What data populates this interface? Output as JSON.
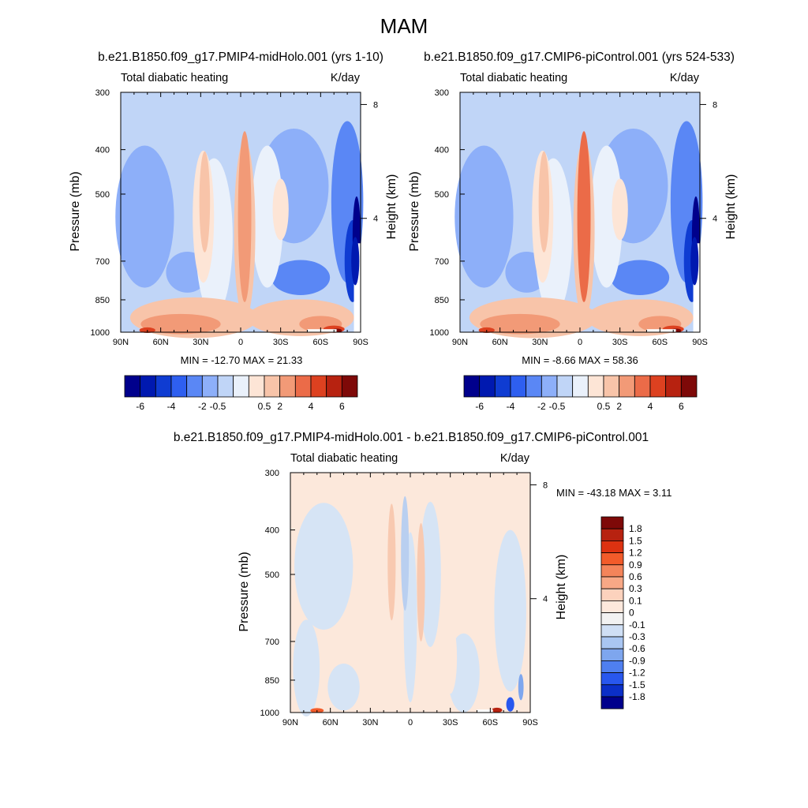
{
  "figure": {
    "title": "MAM",
    "panels": [
      {
        "id": "a",
        "case_title": "b.e21.B1850.f09_g17.PMIP4-midHolo.001 (yrs 1-10)",
        "left_label": "Total diabatic heating",
        "right_label": "K/day",
        "stats": "MIN = -12.70  MAX =  21.33"
      },
      {
        "id": "b",
        "case_title": "b.e21.B1850.f09_g17.CMIP6-piControl.001 (yrs 524-533)",
        "left_label": "Total diabatic heating",
        "right_label": "K/day",
        "stats": "MIN =  -8.66  MAX =  58.36"
      },
      {
        "id": "c",
        "case_title": "b.e21.B1850.f09_g17.PMIP4-midHolo.001 - b.e21.B1850.f09_g17.CMIP6-piControl.001",
        "left_label": "Total diabatic heating",
        "right_label": "K/day",
        "stats": "MIN = -43.18  MAX =   3.11"
      }
    ],
    "axis_labels": {
      "pressure": "Pressure (mb)",
      "height": "Height (km)"
    }
  },
  "chart_data": [
    {
      "type": "heatmap",
      "variable": "Total diabatic heating",
      "units": "K/day",
      "x": {
        "ticks": [
          "90N",
          "60N",
          "30N",
          "0",
          "30S",
          "60S",
          "90S"
        ],
        "range": [
          90,
          -90
        ]
      },
      "y": {
        "ticks": [
          300,
          400,
          500,
          700,
          850,
          1000
        ],
        "range": [
          300,
          1000
        ],
        "scale": "log"
      },
      "y2": {
        "label": "Height (km)",
        "ticks": [
          8,
          4
        ]
      },
      "colorbar": {
        "orientation": "horizontal",
        "labels": [
          "-6",
          "-4",
          "-2",
          "-0.5",
          "0.5",
          "2",
          "4",
          "6"
        ],
        "levels": [
          -6,
          -5,
          -4,
          -3,
          -2,
          -1,
          -0.5,
          0.5,
          1,
          2,
          3,
          4,
          5,
          6
        ]
      },
      "min": -12.7,
      "max": 21.33
    },
    {
      "type": "heatmap",
      "variable": "Total diabatic heating",
      "units": "K/day",
      "x": {
        "ticks": [
          "90N",
          "60N",
          "30N",
          "0",
          "30S",
          "60S",
          "90S"
        ],
        "range": [
          90,
          -90
        ]
      },
      "y": {
        "ticks": [
          300,
          400,
          500,
          700,
          850,
          1000
        ],
        "range": [
          300,
          1000
        ],
        "scale": "log"
      },
      "y2": {
        "label": "Height (km)",
        "ticks": [
          8,
          4
        ]
      },
      "colorbar": {
        "orientation": "horizontal",
        "labels": [
          "-6",
          "-4",
          "-2",
          "-0.5",
          "0.5",
          "2",
          "4",
          "6"
        ],
        "levels": [
          -6,
          -5,
          -4,
          -3,
          -2,
          -1,
          -0.5,
          0.5,
          1,
          2,
          3,
          4,
          5,
          6
        ]
      },
      "min": -8.66,
      "max": 58.36
    },
    {
      "type": "heatmap",
      "variable": "Total diabatic heating",
      "units": "K/day",
      "x": {
        "ticks": [
          "90N",
          "60N",
          "30N",
          "0",
          "30S",
          "60S",
          "90S"
        ],
        "range": [
          90,
          -90
        ]
      },
      "y": {
        "ticks": [
          300,
          400,
          500,
          700,
          850,
          1000
        ],
        "range": [
          300,
          1000
        ],
        "scale": "log"
      },
      "y2": {
        "label": "Height (km)",
        "ticks": [
          8,
          4
        ]
      },
      "colorbar": {
        "orientation": "vertical",
        "labels": [
          "1.8",
          "1.5",
          "1.2",
          "0.9",
          "0.6",
          "0.3",
          "0.1",
          "0",
          "-0.1",
          "-0.3",
          "-0.6",
          "-0.9",
          "-1.2",
          "-1.5",
          "-1.8"
        ],
        "levels": [
          1.8,
          1.5,
          1.2,
          0.9,
          0.6,
          0.3,
          0.1,
          0,
          -0.1,
          -0.3,
          -0.6,
          -0.9,
          -1.2,
          -1.5,
          -1.8
        ]
      },
      "min": -43.18,
      "max": 3.11
    }
  ],
  "colors": {
    "abs_scale": [
      "#00008c",
      "#0019b0",
      "#0f3cd2",
      "#2e5ff0",
      "#5a87f5",
      "#8daff9",
      "#c0d5f7",
      "#eaf1fb",
      "#fde5d6",
      "#f8c4a9",
      "#f29a77",
      "#eb6b48",
      "#dd4120",
      "#b72210",
      "#7e0908"
    ],
    "diff_scale": [
      "#7e0908",
      "#b72210",
      "#dd3211",
      "#f25b2a",
      "#f4845a",
      "#f8a886",
      "#fcd2bd",
      "#fde8dc",
      "#f2f2f2",
      "#cfdff5",
      "#a9c6f2",
      "#7ea6ee",
      "#4f7ff0",
      "#2857ee",
      "#0b2fc8",
      "#00008c"
    ],
    "diff_bg": "#fce8db",
    "diff_neg": "#d6e4f5"
  }
}
